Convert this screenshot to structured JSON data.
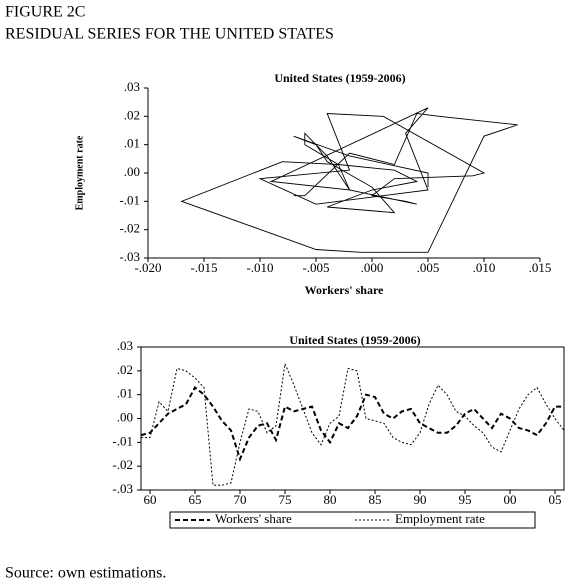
{
  "header": {
    "figure": "FIGURE 2C",
    "title": "RESIDUAL SERIES FOR THE UNITED STATES"
  },
  "chart_data": [
    {
      "type": "scatter",
      "title": "United States (1959-2006)",
      "xlabel": "Workers' share",
      "ylabel": "Employment rate",
      "connected": true,
      "color": "#000000",
      "x": [
        -0.007,
        -0.006,
        -0.002,
        0.002,
        0.004,
        0.006,
        0.013,
        0.01,
        0.005,
        -0.001,
        -0.005,
        -0.017,
        -0.008,
        -0.003,
        -0.002,
        -0.009,
        0.005,
        0.003,
        0.004,
        0.005,
        -0.005,
        -0.01,
        -0.002,
        -0.004,
        0.001,
        0.01,
        0.009,
        0.002,
        0.0,
        0.003,
        0.004,
        -0.002,
        -0.004,
        -0.006,
        -0.006,
        -0.003,
        0.002,
        0.004,
        0.0,
        -0.004,
        0.002,
        0.0,
        -0.004,
        -0.005,
        -0.007,
        -0.002,
        0.005,
        0.005
      ],
      "values": [
        -0.008,
        -0.008,
        0.007,
        0.003,
        0.021,
        0.02,
        0.017,
        0.013,
        -0.028,
        -0.028,
        -0.027,
        -0.01,
        0.004,
        0.003,
        -0.006,
        -0.003,
        0.023,
        0.014,
        0.004,
        -0.006,
        -0.011,
        -0.002,
        0.001,
        0.021,
        0.02,
        0.0,
        -0.001,
        -0.002,
        -0.008,
        -0.01,
        -0.011,
        -0.006,
        0.006,
        0.014,
        0.01,
        0.003,
        0.001,
        -0.003,
        -0.006,
        -0.012,
        -0.014,
        -0.005,
        0.004,
        0.01,
        0.013,
        0.006,
        0.0,
        -0.005
      ],
      "xlim": [
        -0.02,
        0.015
      ],
      "xticks": [
        {
          "value": -0.02,
          "label": "-.020"
        },
        {
          "value": -0.015,
          "label": "-.015"
        },
        {
          "value": -0.01,
          "label": "-.010"
        },
        {
          "value": -0.005,
          "label": "-.005"
        },
        {
          "value": 0,
          "label": ".000"
        },
        {
          "value": 0.005,
          "label": ".005"
        },
        {
          "value": 0.01,
          "label": ".010"
        },
        {
          "value": 0.015,
          "label": ".015"
        }
      ],
      "ylim": [
        -0.03,
        0.03
      ],
      "yticks": [
        {
          "value": 0.03,
          "label": ".03"
        },
        {
          "value": 0.02,
          "label": ".02"
        },
        {
          "value": 0.01,
          "label": ".01"
        },
        {
          "value": 0,
          "label": ".00"
        },
        {
          "value": -0.01,
          "label": "-.01"
        },
        {
          "value": -0.02,
          "label": "-.02"
        },
        {
          "value": -0.03,
          "label": "-.03"
        }
      ]
    },
    {
      "type": "line",
      "title": "United States (1959-2006)",
      "legend": "bottom",
      "x": [
        1959,
        1960,
        1961,
        1962,
        1963,
        1964,
        1965,
        1966,
        1967,
        1968,
        1969,
        1970,
        1971,
        1972,
        1973,
        1974,
        1975,
        1976,
        1977,
        1978,
        1979,
        1980,
        1981,
        1982,
        1983,
        1984,
        1985,
        1986,
        1987,
        1988,
        1989,
        1990,
        1991,
        1992,
        1993,
        1994,
        1995,
        1996,
        1997,
        1998,
        1999,
        2000,
        2001,
        2002,
        2003,
        2004,
        2005,
        2006
      ],
      "series": [
        {
          "name": "Workers' share",
          "color": "#000000",
          "dash": "5,3",
          "width": 2,
          "values": [
            -0.007,
            -0.006,
            -0.002,
            0.002,
            0.004,
            0.006,
            0.013,
            0.01,
            0.005,
            -0.001,
            -0.005,
            -0.017,
            -0.008,
            -0.003,
            -0.002,
            -0.009,
            0.005,
            0.003,
            0.004,
            0.005,
            -0.005,
            -0.01,
            -0.002,
            -0.004,
            0.001,
            0.01,
            0.009,
            0.002,
            0.0,
            0.003,
            0.004,
            -0.002,
            -0.004,
            -0.006,
            -0.006,
            -0.003,
            0.002,
            0.004,
            0.0,
            -0.004,
            0.002,
            0.0,
            -0.004,
            -0.005,
            -0.007,
            -0.002,
            0.005,
            0.005
          ]
        },
        {
          "name": "Employment rate",
          "color": "#000000",
          "dash": "2,2",
          "width": 1,
          "values": [
            -0.008,
            -0.008,
            0.007,
            0.003,
            0.021,
            0.02,
            0.017,
            0.013,
            -0.028,
            -0.028,
            -0.027,
            -0.01,
            0.004,
            0.003,
            -0.006,
            -0.003,
            0.023,
            0.014,
            0.004,
            -0.006,
            -0.011,
            -0.002,
            0.001,
            0.021,
            0.02,
            0.0,
            -0.001,
            -0.002,
            -0.008,
            -0.01,
            -0.011,
            -0.006,
            0.006,
            0.014,
            0.01,
            0.003,
            0.001,
            -0.003,
            -0.006,
            -0.012,
            -0.014,
            -0.005,
            0.004,
            0.01,
            0.013,
            0.006,
            0.0,
            -0.005
          ]
        }
      ],
      "xlim": [
        1959,
        2006
      ],
      "xticks": [
        {
          "value": 1960,
          "label": "60"
        },
        {
          "value": 1965,
          "label": "65"
        },
        {
          "value": 1970,
          "label": "70"
        },
        {
          "value": 1975,
          "label": "75"
        },
        {
          "value": 1980,
          "label": "80"
        },
        {
          "value": 1985,
          "label": "85"
        },
        {
          "value": 1990,
          "label": "90"
        },
        {
          "value": 1995,
          "label": "95"
        },
        {
          "value": 2000,
          "label": "00"
        },
        {
          "value": 2005,
          "label": "05"
        }
      ],
      "ylim": [
        -0.03,
        0.03
      ],
      "yticks": [
        {
          "value": 0.03,
          "label": ".03"
        },
        {
          "value": 0.02,
          "label": ".02"
        },
        {
          "value": 0.01,
          "label": ".01"
        },
        {
          "value": 0,
          "label": ".00"
        },
        {
          "value": -0.01,
          "label": "-.01"
        },
        {
          "value": -0.02,
          "label": "-.02"
        },
        {
          "value": -0.03,
          "label": "-.03"
        }
      ]
    }
  ],
  "footer": {
    "source": "Source: own estimations."
  }
}
